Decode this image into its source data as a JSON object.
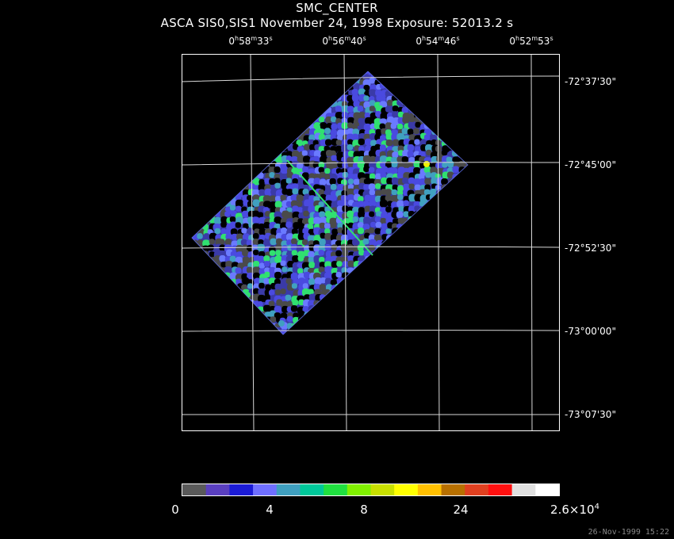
{
  "title": "SMC_CENTER",
  "subtitle": "ASCA SIS0,SIS1 November 24, 1998 Exposure: 52013.2 s",
  "ra_labels": [
    {
      "h": "0",
      "m": "58",
      "s": "33"
    },
    {
      "h": "0",
      "m": "56",
      "m2": "",
      "s": "40"
    },
    {
      "h": "0",
      "m": "54",
      "s": "46"
    },
    {
      "h": "0",
      "m": "52",
      "s": "53"
    }
  ],
  "dec_labels": [
    "-72°37'30\"",
    "-72°45'00\"",
    "-72°52'30\"",
    "-73°00'00\"",
    "-73°07'30\""
  ],
  "colorbar": {
    "colors": [
      "#5a5a5a",
      "#5a3fc0",
      "#1b1bd6",
      "#6f6fff",
      "#3f9fbf",
      "#00c89a",
      "#20e040",
      "#80f000",
      "#c8e000",
      "#ffff00",
      "#ffc000",
      "#b87000",
      "#e04020",
      "#ff1010",
      "#e0e0e0",
      "#ffffff"
    ],
    "tick_labels": [
      "0",
      "4",
      "8",
      "24",
      "2.6×10"
    ],
    "tick_sup": "4"
  },
  "image_palette": {
    "background": "#000000",
    "gray": "#4a4a4a",
    "blue_dark": "#3a3aa8",
    "blue": "#4a4ae0",
    "blue_light": "#6a7aff",
    "cyan": "#40a0c0",
    "green": "#30e070",
    "yellow": "#f0f000"
  },
  "timestamp": "26-Nov-1999 15:22"
}
